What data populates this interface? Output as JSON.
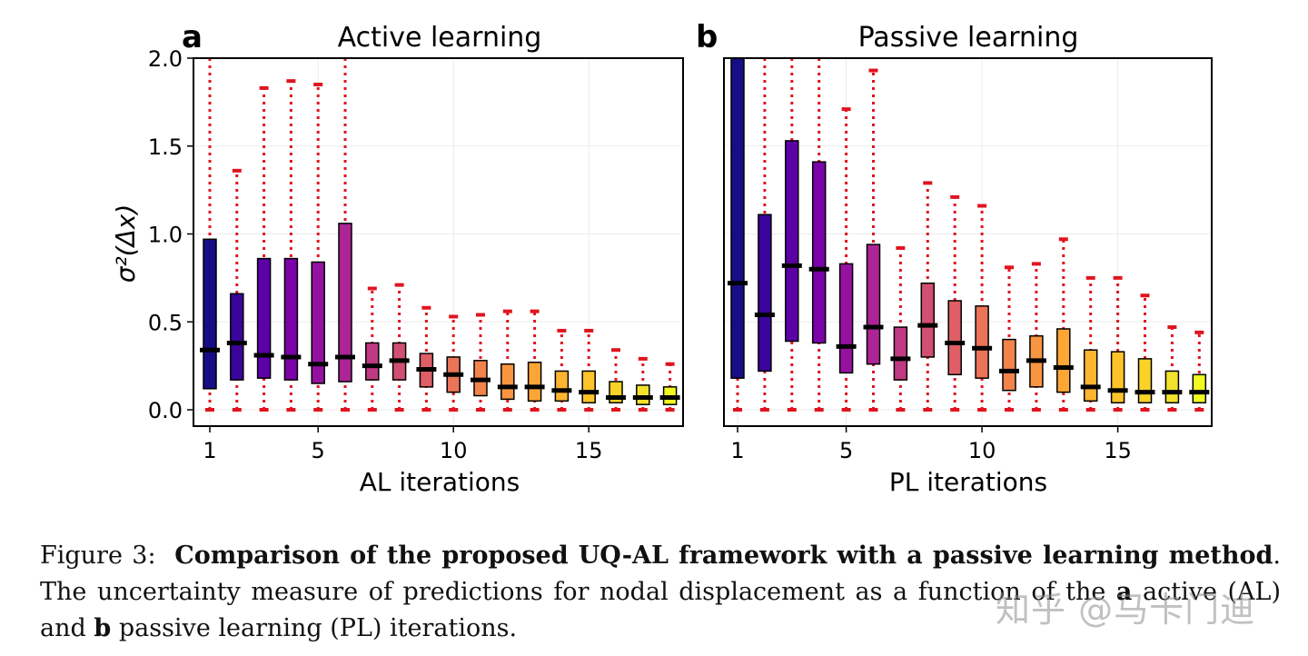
{
  "chart_data": [
    {
      "type": "box",
      "panel_label": "a",
      "title": "Active learning",
      "xlabel": "AL iterations",
      "ylabel": "σ²(Δx)",
      "ylim": [
        0,
        2.0
      ],
      "yticks": [
        "0.0",
        "0.5",
        "1.0",
        "1.5",
        "2.0"
      ],
      "xticks": [
        "1",
        "5",
        "10",
        "15"
      ],
      "xtick_values": [
        1,
        5,
        10,
        15
      ],
      "whisker_min": 0.0,
      "q1": [
        0.12,
        0.17,
        0.18,
        0.17,
        0.15,
        0.16,
        0.17,
        0.17,
        0.13,
        0.1,
        0.08,
        0.06,
        0.05,
        0.05,
        0.04,
        0.04,
        0.03,
        0.03
      ],
      "median": [
        0.34,
        0.38,
        0.31,
        0.3,
        0.26,
        0.3,
        0.25,
        0.28,
        0.23,
        0.2,
        0.17,
        0.13,
        0.13,
        0.11,
        0.1,
        0.07,
        0.07,
        0.07
      ],
      "q3": [
        0.97,
        0.66,
        0.86,
        0.86,
        0.84,
        1.06,
        0.38,
        0.38,
        0.32,
        0.3,
        0.28,
        0.26,
        0.27,
        0.22,
        0.22,
        0.16,
        0.14,
        0.13
      ],
      "whisker_max": [
        2.0,
        1.36,
        1.83,
        1.87,
        1.85,
        2.0,
        0.69,
        0.71,
        0.58,
        0.53,
        0.54,
        0.56,
        0.56,
        0.45,
        0.45,
        0.34,
        0.29,
        0.26
      ]
    },
    {
      "type": "box",
      "panel_label": "b",
      "title": "Passive learning",
      "xlabel": "PL iterations",
      "ylabel": "",
      "ylim": [
        0,
        2.0
      ],
      "yticks": [],
      "xticks": [
        "1",
        "5",
        "10",
        "15"
      ],
      "xtick_values": [
        1,
        5,
        10,
        15
      ],
      "whisker_min": 0.0,
      "q1": [
        0.18,
        0.22,
        0.39,
        0.38,
        0.21,
        0.26,
        0.17,
        0.3,
        0.2,
        0.18,
        0.11,
        0.13,
        0.1,
        0.05,
        0.04,
        0.04,
        0.04,
        0.04
      ],
      "median": [
        0.72,
        0.54,
        0.82,
        0.8,
        0.36,
        0.47,
        0.29,
        0.48,
        0.38,
        0.35,
        0.22,
        0.28,
        0.24,
        0.13,
        0.11,
        0.1,
        0.1,
        0.1
      ],
      "q3": [
        2.0,
        1.11,
        1.53,
        1.41,
        0.83,
        0.94,
        0.47,
        0.72,
        0.62,
        0.59,
        0.4,
        0.42,
        0.46,
        0.34,
        0.33,
        0.29,
        0.22,
        0.2
      ],
      "whisker_max": [
        2.0,
        2.0,
        2.0,
        2.0,
        1.71,
        1.93,
        0.92,
        1.29,
        1.21,
        1.16,
        0.81,
        0.83,
        0.97,
        0.75,
        0.75,
        0.65,
        0.47,
        0.44
      ]
    }
  ],
  "colors": {
    "box_palette": [
      "#170d87",
      "#3b049a",
      "#5c01a6",
      "#7a02a8",
      "#9512a1",
      "#ad2495",
      "#c03a83",
      "#d14f71",
      "#de5f65",
      "#ea7457",
      "#f2844b",
      "#f89540",
      "#fca636",
      "#fdb42f",
      "#fdc328",
      "#f9d326",
      "#f3e22b",
      "#f0f921"
    ],
    "whisker": "#e0141e",
    "median": "#000000"
  },
  "caption": {
    "figure_label": "Figure 3:",
    "bold_title": "Comparison of the proposed UQ-AL framework with a passive learning method",
    "text_1": ". The uncertainty measure of predictions for nodal displacement as a function of the ",
    "ref_a": "a",
    "text_2": "active (AL) and ",
    "ref_b": "b",
    "text_3": " passive learning (PL) iterations."
  },
  "watermark": "知乎 @马卡门迪"
}
